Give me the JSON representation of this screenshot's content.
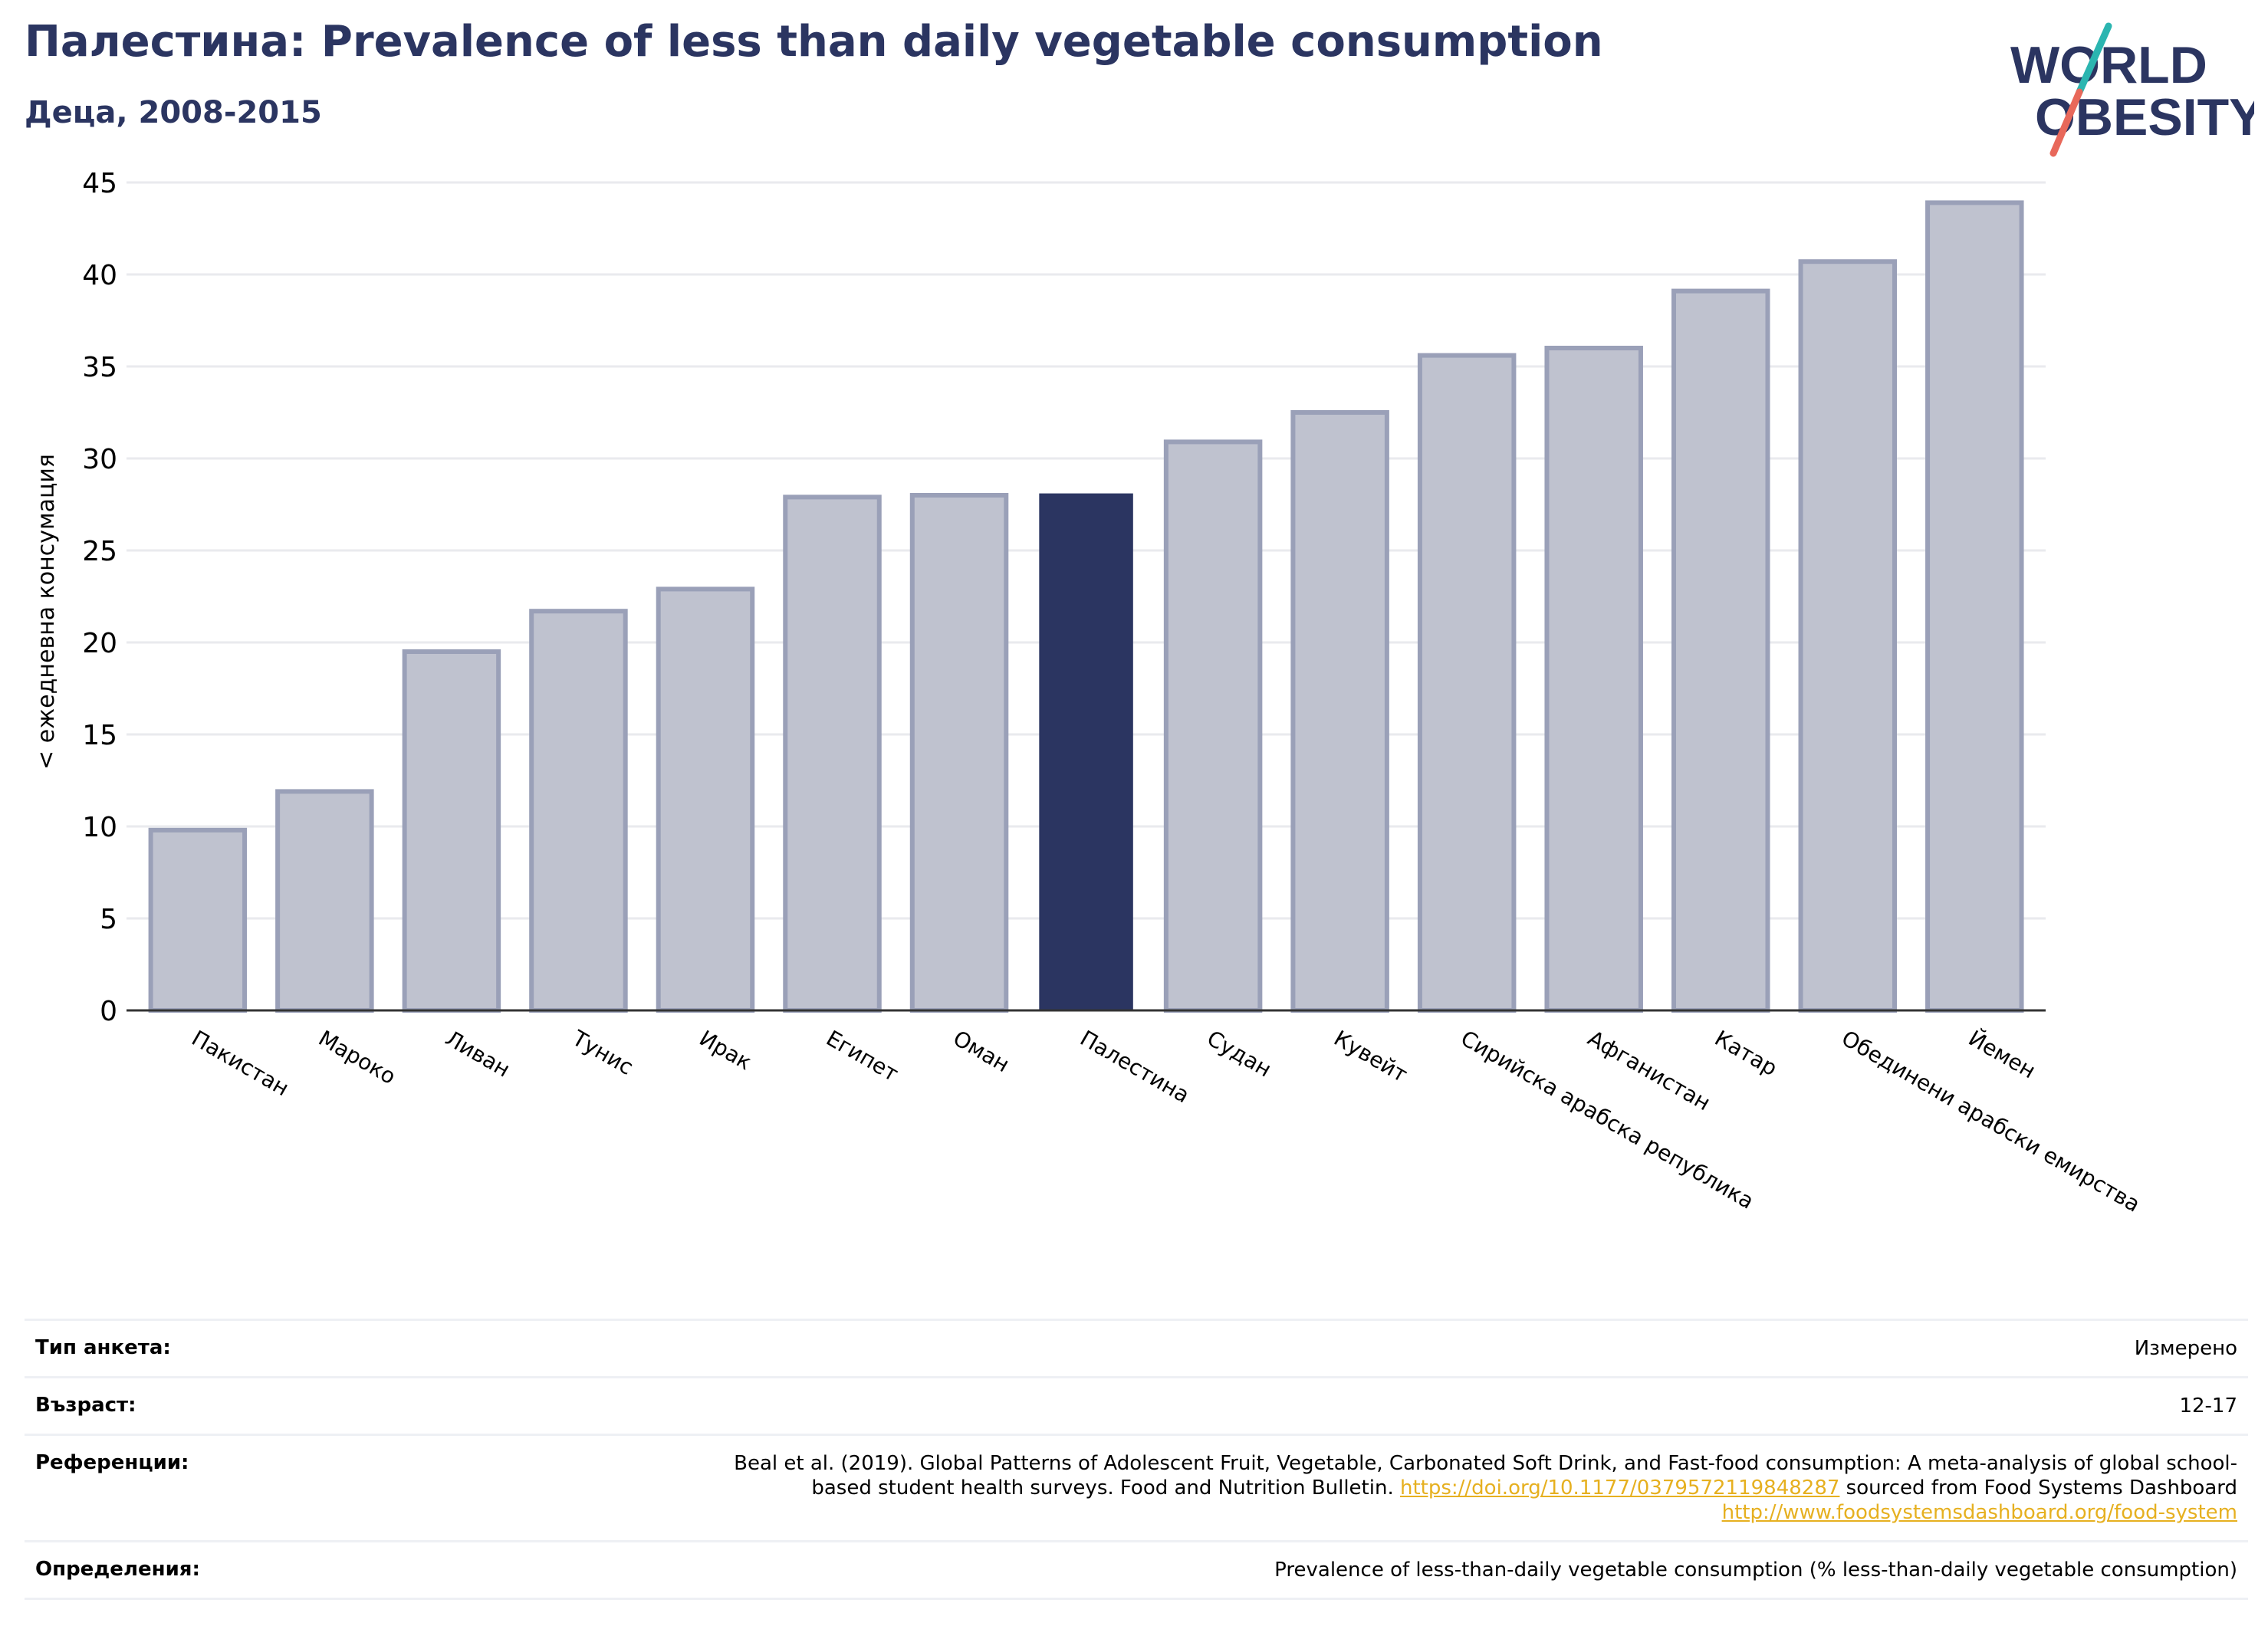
{
  "header": {
    "title": "Палестина: Prevalence of less than daily vegetable consumption",
    "subtitle": "Деца, 2008-2015"
  },
  "logo": {
    "line1": "WORLD",
    "line2": "OBESITY",
    "colors": {
      "text": "#2b3561",
      "slash_top": "#2bb5b0",
      "slash_bottom": "#e8685a"
    }
  },
  "chart_data": {
    "type": "bar",
    "title": "Палестина: Prevalence of less than daily vegetable consumption",
    "subtitle": "Деца, 2008-2015",
    "ylabel": "< ежедневна консумация",
    "xlabel": "",
    "ylim": [
      0,
      45
    ],
    "yticks": [
      0,
      5,
      10,
      15,
      20,
      25,
      30,
      35,
      40,
      45
    ],
    "grid": true,
    "categories": [
      "Пакистан",
      "Мароко",
      "Ливан",
      "Тунис",
      "Ирак",
      "Египет",
      "Оман",
      "Палестина",
      "Судан",
      "Кувейт",
      "Сирийска арабска република",
      "Афганистан",
      "Катар",
      "Обединени арабски емирства",
      "Йемен"
    ],
    "values": [
      9.8,
      11.9,
      19.5,
      21.7,
      22.9,
      27.9,
      28.0,
      28.1,
      30.9,
      32.5,
      35.6,
      36.0,
      39.1,
      40.7,
      43.9
    ],
    "highlight": "Палестина",
    "colors": {
      "bar": "#bfc2cf",
      "bar_edge": "#9aa0b8",
      "highlight": "#2b3561",
      "grid": "#e9eaee",
      "axis": "#333333"
    }
  },
  "info": {
    "survey_type_label": "Тип анкета:",
    "survey_type_value": "Измерено",
    "age_label": "Възраст:",
    "age_value": "12-17",
    "references_label": "Референции:",
    "references_text_1": "Beal et al. (2019). Global Patterns of Adolescent Fruit, Vegetable, Carbonated Soft Drink, and Fast-food consumption: A meta-analysis of global school-based student health surveys. Food and Nutrition Bulletin. ",
    "references_link_1": "https://doi.org/10.1177/0379572119848287",
    "references_text_2": " sourced from Food Systems Dashboard ",
    "references_link_2": "http://www.foodsystemsdashboard.org/food-system",
    "definitions_label": "Определения:",
    "definitions_value": "Prevalence of less-than-daily vegetable consumption (% less-than-daily vegetable consumption)"
  }
}
